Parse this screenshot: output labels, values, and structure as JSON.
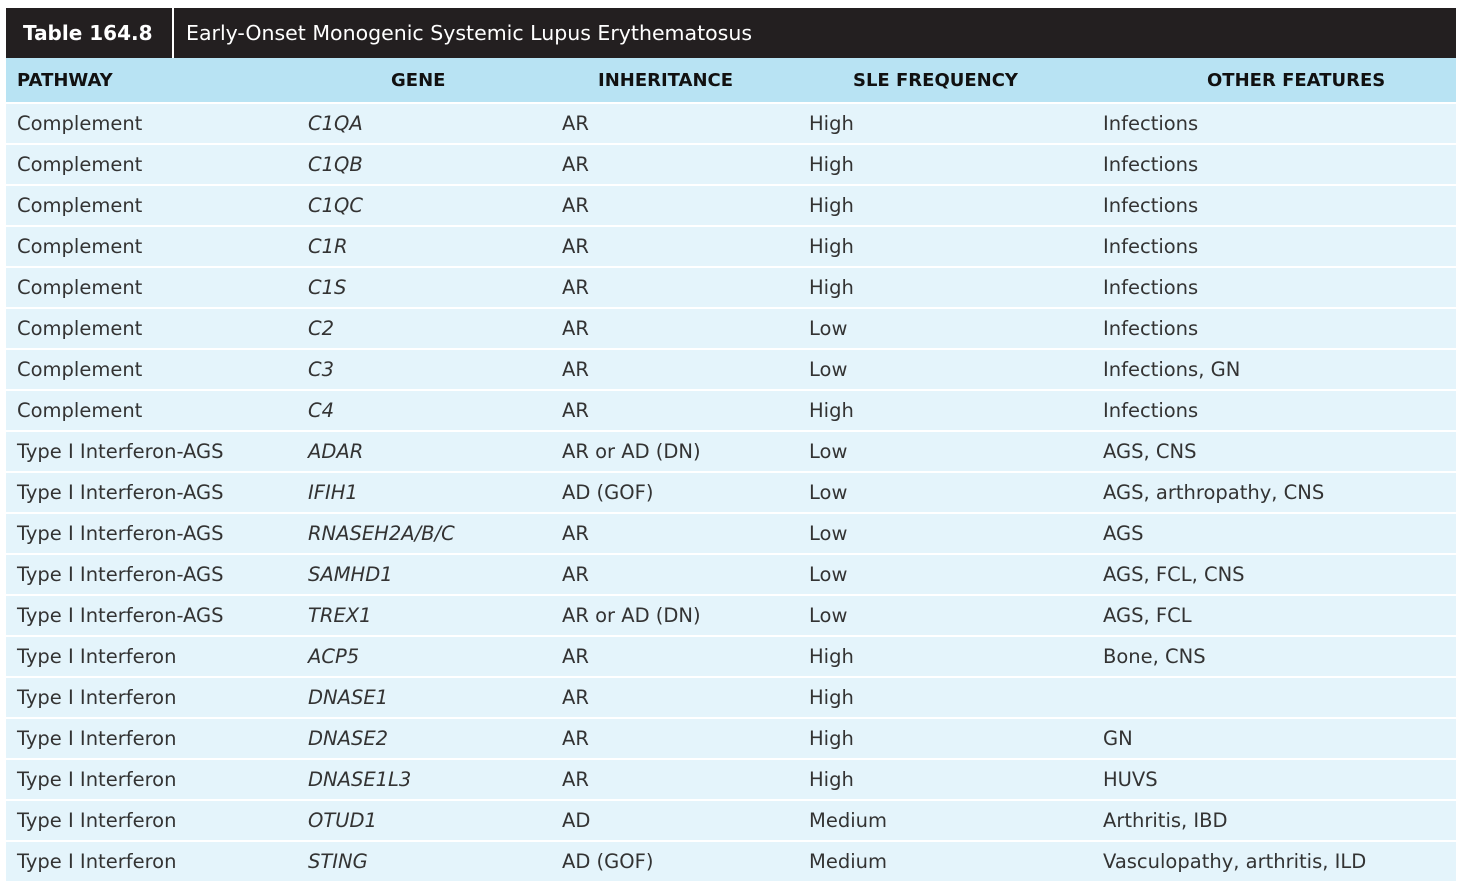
{
  "title": {
    "number": "Table 164.8",
    "text": "Early-Onset Monogenic Systemic Lupus Erythematosus"
  },
  "headers": {
    "pathway": "PATHWAY",
    "gene": "GENE",
    "inheritance": "INHERITANCE",
    "sle_frequency": "SLE FREQUENCY",
    "other_features": "OTHER FEATURES"
  },
  "rows": [
    {
      "pathway": "Complement",
      "gene": "C1QA",
      "inheritance": "AR",
      "sle": "High",
      "other": "Infections"
    },
    {
      "pathway": "Complement",
      "gene": "C1QB",
      "inheritance": "AR",
      "sle": "High",
      "other": "Infections"
    },
    {
      "pathway": "Complement",
      "gene": "C1QC",
      "inheritance": "AR",
      "sle": "High",
      "other": "Infections"
    },
    {
      "pathway": "Complement",
      "gene": "C1R",
      "inheritance": "AR",
      "sle": "High",
      "other": "Infections"
    },
    {
      "pathway": "Complement",
      "gene": "C1S",
      "inheritance": "AR",
      "sle": "High",
      "other": "Infections"
    },
    {
      "pathway": "Complement",
      "gene": "C2",
      "inheritance": "AR",
      "sle": "Low",
      "other": "Infections"
    },
    {
      "pathway": "Complement",
      "gene": "C3",
      "inheritance": "AR",
      "sle": "Low",
      "other": "Infections, GN"
    },
    {
      "pathway": "Complement",
      "gene": "C4",
      "inheritance": "AR",
      "sle": "High",
      "other": "Infections"
    },
    {
      "pathway": "Type I Interferon-AGS",
      "gene": "ADAR",
      "inheritance": "AR or AD (DN)",
      "sle": "Low",
      "other": "AGS, CNS"
    },
    {
      "pathway": "Type I Interferon-AGS",
      "gene": "IFIH1",
      "inheritance": "AD (GOF)",
      "sle": "Low",
      "other": "AGS, arthropathy, CNS"
    },
    {
      "pathway": "Type I Interferon-AGS",
      "gene": "RNASEH2A/B/C",
      "inheritance": "AR",
      "sle": "Low",
      "other": "AGS"
    },
    {
      "pathway": "Type I Interferon-AGS",
      "gene": "SAMHD1",
      "inheritance": "AR",
      "sle": "Low",
      "other": "AGS, FCL, CNS"
    },
    {
      "pathway": "Type I Interferon-AGS",
      "gene": "TREX1",
      "inheritance": "AR or AD (DN)",
      "sle": "Low",
      "other": "AGS, FCL"
    },
    {
      "pathway": "Type I Interferon",
      "gene": "ACP5",
      "inheritance": "AR",
      "sle": "High",
      "other": "Bone, CNS"
    },
    {
      "pathway": "Type I Interferon",
      "gene": "DNASE1",
      "inheritance": "AR",
      "sle": "High",
      "other": ""
    },
    {
      "pathway": "Type I Interferon",
      "gene": "DNASE2",
      "inheritance": "AR",
      "sle": "High",
      "other": "GN"
    },
    {
      "pathway": "Type I Interferon",
      "gene": "DNASE1L3",
      "inheritance": "AR",
      "sle": "High",
      "other": "HUVS"
    },
    {
      "pathway": "Type I Interferon",
      "gene": "OTUD1",
      "inheritance": "AD",
      "sle": "Medium",
      "other": "Arthritis, IBD"
    },
    {
      "pathway": "Type I Interferon",
      "gene": "STING",
      "inheritance": "AD (GOF)",
      "sle": "Medium",
      "other": "Vasculopathy, arthritis, ILD"
    }
  ]
}
